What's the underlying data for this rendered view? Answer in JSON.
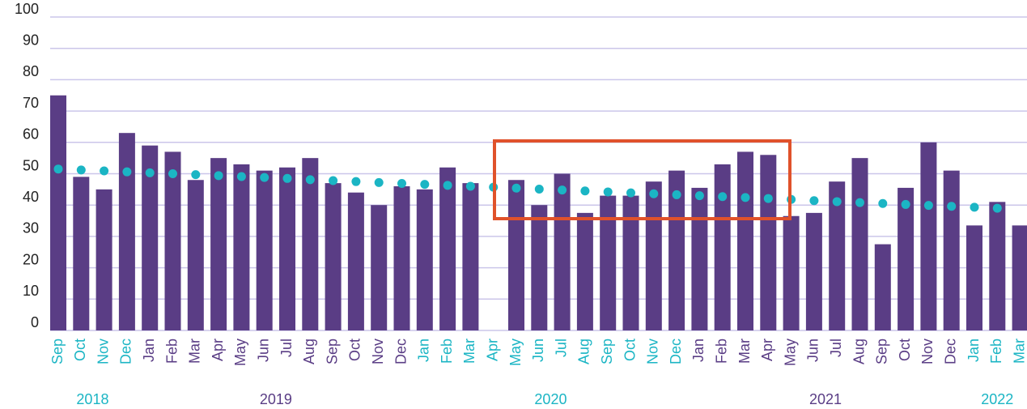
{
  "chart_data": {
    "type": "bar",
    "categories": [
      "Sep",
      "Oct",
      "Nov",
      "Dec",
      "Jan",
      "Feb",
      "Mar",
      "Apr",
      "May",
      "Jun",
      "Jul",
      "Aug",
      "Sep",
      "Oct",
      "Nov",
      "Dec",
      "Jan",
      "Feb",
      "Mar",
      "Apr",
      "May",
      "Jun",
      "Jul",
      "Aug",
      "Sep",
      "Oct",
      "Nov",
      "Dec",
      "Jan",
      "Feb",
      "Mar",
      "Apr",
      "May",
      "Jun",
      "Jul",
      "Aug",
      "Sep",
      "Oct",
      "Nov",
      "Dec",
      "Jan",
      "Feb",
      "Mar"
    ],
    "groups": [
      {
        "label": "2018",
        "color": "#1bb5c4",
        "size": 4
      },
      {
        "label": "2019",
        "color": "#5a3d85",
        "size": 12
      },
      {
        "label": "2020",
        "color": "#1bb5c4",
        "size": 12
      },
      {
        "label": "2021",
        "color": "#5a3d85",
        "size": 12
      },
      {
        "label": "2022",
        "color": "#1bb5c4",
        "size": 3
      }
    ],
    "series": [
      {
        "type": "bar",
        "color": "#5a3d85",
        "values": [
          75,
          49,
          45,
          63,
          59,
          57,
          48,
          55,
          53,
          51,
          52,
          55,
          47,
          44,
          40,
          46,
          45,
          52,
          47,
          null,
          48,
          40,
          50,
          37.5,
          43,
          43,
          47.5,
          51,
          45.5,
          53,
          57,
          56,
          36.5,
          37.5,
          47.5,
          55,
          27.5,
          45.5,
          60,
          51,
          33.5,
          41,
          33.5
        ]
      },
      {
        "type": "dots",
        "color": "#1bb5c4",
        "values": [
          51.5,
          51.2,
          50.9,
          50.6,
          50.3,
          50.0,
          49.7,
          49.4,
          49.1,
          48.8,
          48.5,
          48.1,
          47.8,
          47.5,
          47.2,
          46.9,
          46.6,
          46.3,
          46.0,
          45.7,
          45.4,
          45.1,
          44.8,
          44.5,
          44.2,
          43.9,
          43.6,
          43.3,
          43.0,
          42.7,
          42.4,
          42.1,
          41.8,
          41.4,
          41.1,
          40.8,
          40.5,
          40.2,
          39.9,
          39.6,
          39.3,
          39.0,
          null
        ]
      }
    ],
    "ylim": [
      0,
      100
    ],
    "yticks": [
      0,
      10,
      20,
      30,
      40,
      50,
      60,
      70,
      80,
      90,
      100
    ],
    "grid": true
  }
}
